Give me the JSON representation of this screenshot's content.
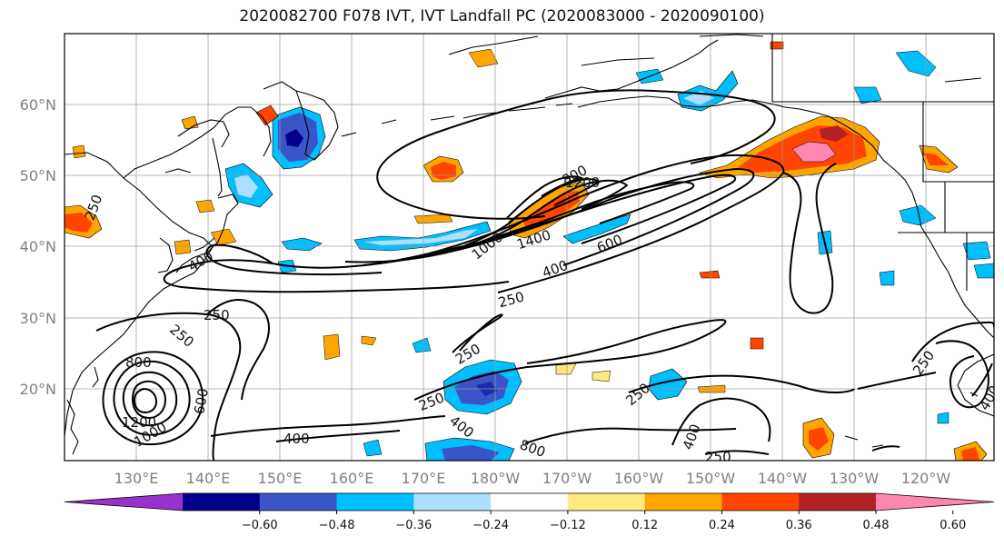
{
  "title": "2020082700 F078 IVT, IVT Landfall PC (2020083000 - 2020090100)",
  "lat_labels": [
    "60°N",
    "50°N",
    "40°N",
    "30°N",
    "20°N"
  ],
  "lon_labels": [
    "130°E",
    "140°E",
    "150°E",
    "160°E",
    "170°E",
    "180°W",
    "170°W",
    "160°W",
    "150°W",
    "140°W",
    "130°W",
    "120°W"
  ],
  "colorbar": {
    "colors": [
      "#9932CC",
      "#00008B",
      "#3A55C9",
      "#00BFFF",
      "#ADDFFF",
      "#FFFFFF",
      "#FFE97F",
      "#FFA500",
      "#FF4500",
      "#B22222",
      "#FF86B0"
    ],
    "ticks": [
      "−0.60",
      "−0.48",
      "−0.36",
      "−0.24",
      "−0.12",
      "0.12",
      "0.24",
      "0.36",
      "0.48",
      "0.60"
    ]
  },
  "contour_labels": [
    "250",
    "400",
    "600",
    "800",
    "1000",
    "1200",
    "1400",
    "800",
    "1200",
    "1000",
    "600",
    "400",
    "250",
    "250",
    "250",
    "250",
    "250",
    "400",
    "400",
    "250",
    "250",
    "400",
    "250",
    "400",
    "800",
    "1200",
    "1000",
    "600",
    "400",
    "250"
  ],
  "colors": {
    "contour": "#000000",
    "coast": "#000000",
    "grid": "#9a9a9a",
    "frame": "#000000"
  }
}
